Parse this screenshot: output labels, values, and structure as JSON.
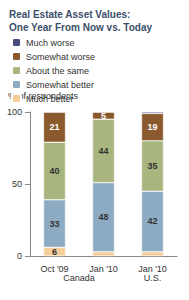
{
  "chart_data": {
    "type": "bar",
    "title": "Real Estate Asset Values:\nOne Year From Now vs. Today",
    "y_label": "% of respondents",
    "categories": [
      "Oct '09",
      "Jan '10",
      "Jan '10"
    ],
    "category_groups": [
      "Canada",
      "Canada",
      "U.S."
    ],
    "stacked": true,
    "data_labels": true,
    "legend": "top-left",
    "grid": false,
    "ylim": [
      0,
      100
    ],
    "yticks": [
      0,
      50,
      100
    ],
    "series": [
      {
        "name": "Much better",
        "color": "#f6cf98",
        "values": [
          6,
          3,
          3
        ],
        "value_labels": [
          "6",
          null,
          null
        ]
      },
      {
        "name": "Somewhat better",
        "color": "#8eabc4",
        "values": [
          33,
          48,
          42
        ],
        "value_labels": [
          "33",
          "48",
          "42"
        ]
      },
      {
        "name": "About the same",
        "color": "#a9b57e",
        "values": [
          40,
          44,
          35
        ],
        "value_labels": [
          "40",
          "44",
          "35"
        ]
      },
      {
        "name": "Somewhat worse",
        "color": "#8a5a2e",
        "values": [
          21,
          5,
          19
        ],
        "value_labels": [
          "21",
          "5",
          "19"
        ]
      },
      {
        "name": "Much worse",
        "color": "#4b4a7c",
        "values": [
          0,
          0,
          1
        ],
        "value_labels": [
          null,
          null,
          null
        ]
      }
    ]
  }
}
